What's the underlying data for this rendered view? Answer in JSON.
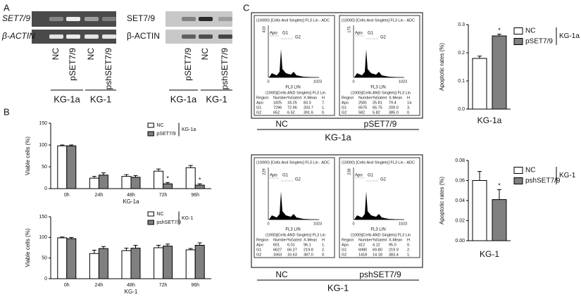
{
  "panel_labels": [
    "A",
    "B",
    "C"
  ],
  "western": [
    {
      "rows": [
        "SET7/9",
        "β-ACTIN"
      ],
      "lanes": [
        "NC",
        "pSET7/9",
        "NC",
        "pshSET7/9"
      ],
      "groups": [
        "KG-1a",
        "KG-1"
      ]
    },
    {
      "rows": [
        "SET7/9",
        "β-ACTIN"
      ],
      "lanes": [
        "pSET7/9",
        "NC",
        "pshSET7/9"
      ],
      "groups": [
        "KG-1a",
        "KG-1"
      ]
    }
  ],
  "flow": [
    {
      "labels": [
        "NC",
        "pSET7/9"
      ],
      "cell_line": "KG-1a",
      "samples": [
        {
          "header": "(10000) [Cells And Singlets] FL3 Lin - ADC",
          "y_max": "410",
          "gates": [
            "Apo",
            "G1",
            "G2"
          ],
          "x_ticks": [
            "0",
            "1023"
          ],
          "x_label": "FL3 LIN",
          "table_title": "(1000)[Cells AND Singlets] FL3 Lin",
          "columns": [
            "Region",
            "Number",
            "%Gated",
            "X-Mean",
            "H"
          ],
          "rows": [
            [
              "Apo",
              "1825",
              "18.25",
              "83.3",
              "7."
            ],
            [
              "G1",
              "7296",
              "72.96",
              "203.7",
              "1."
            ],
            [
              "G2",
              "652",
              "6.52",
              "391.6",
              "0."
            ]
          ]
        },
        {
          "header": "(10000) [Cells And Singlets] FL3 Lin - ADC",
          "y_max": "175",
          "gates": [
            "Apo",
            "G1",
            "G2"
          ],
          "x_ticks": [
            "0",
            "1023"
          ],
          "x_label": "FL3 LIN",
          "table_title": "(1000)[Cells AND Singlets] FL3 Lin",
          "columns": [
            "Region",
            "Number",
            "%Gated",
            "X-Mean",
            "H"
          ],
          "rows": [
            [
              "Apo",
              "2581",
              "25.81",
              "79.4",
              "14."
            ],
            [
              "G1",
              "6575",
              "65.75",
              "209.0",
              "3."
            ],
            [
              "G2",
              "582",
              "5.82",
              "385.0",
              "0."
            ]
          ]
        }
      ]
    },
    {
      "labels": [
        "NC",
        "pshSET7/9"
      ],
      "cell_line": "KG-1",
      "samples": [
        {
          "header": "(10000) [Cells And Singlets] FL3 Lin - ADC",
          "y_max": "229",
          "gates": [
            "Apo",
            "G1",
            "G2"
          ],
          "x_ticks": [
            "0",
            "1023"
          ],
          "x_label": "FL3 LIN",
          "table_title": "(1000)[Cells AND Singlets] FL3 Lin",
          "columns": [
            "Region",
            "Number",
            "%Gated",
            "X-Mean",
            "H"
          ],
          "rows": [
            [
              "Apo",
              "601",
              "6.01",
              "96.1",
              "1."
            ],
            [
              "G1",
              "6627",
              "66.27",
              "219.8",
              "2."
            ],
            [
              "G2",
              "1663",
              "16.63",
              "387.0",
              "0."
            ]
          ]
        },
        {
          "header": "(10000) [Cells And Singlets] FL3 Lin - ADC",
          "y_max": "238",
          "gates": [
            "Apo",
            "G1",
            "G2"
          ],
          "x_ticks": [
            "0",
            "1023"
          ],
          "x_label": "FL3 LIN",
          "table_title": "(1000)[Cells AND Singlets] FL3 Lin",
          "columns": [
            "Region",
            "Number",
            "%Gated",
            "X-Mean",
            "H"
          ],
          "rows": [
            [
              "Apo",
              "412",
              "4.12",
              "95.0",
              "0."
            ],
            [
              "G1",
              "6980",
              "69.80",
              "219.9",
              "2."
            ],
            [
              "G2",
              "1418",
              "14.18",
              "383.4",
              "1."
            ]
          ]
        }
      ]
    }
  ],
  "chart_data": [
    {
      "type": "bar",
      "y_label": "Viable cells (%)",
      "x_label": "KG-1a",
      "legend_title": "KG-1a",
      "categories": [
        "0h",
        "24h",
        "48h",
        "72h",
        "96h"
      ],
      "ylim": [
        0,
        150
      ],
      "yticks": [
        0,
        50,
        100,
        150
      ],
      "series": [
        {
          "name": "NC",
          "color": "#ffffff",
          "values": [
            98,
            24,
            28,
            40,
            48
          ],
          "errors": [
            2,
            4,
            4,
            5,
            5
          ],
          "annotations": [
            null,
            null,
            null,
            null,
            null
          ]
        },
        {
          "name": "pSET7/9",
          "color": "#808080",
          "values": [
            98,
            31,
            26,
            11,
            8
          ],
          "errors": [
            2,
            5,
            4,
            3,
            3
          ],
          "annotations": [
            null,
            null,
            null,
            "*",
            "*"
          ]
        }
      ]
    },
    {
      "type": "bar",
      "y_label": "Viable cells (%)",
      "x_label": "KG-1",
      "legend_title": "KG-1",
      "categories": [
        "0h",
        "24h",
        "48h",
        "72h",
        "96h"
      ],
      "ylim": [
        0,
        150
      ],
      "yticks": [
        0,
        50,
        100,
        150
      ],
      "series": [
        {
          "name": "NC",
          "color": "#ffffff",
          "values": [
            99,
            61,
            68,
            75,
            70
          ],
          "errors": [
            2,
            8,
            6,
            6,
            3
          ],
          "annotations": [
            null,
            null,
            null,
            null,
            null
          ]
        },
        {
          "name": "pshSET7/9",
          "color": "#808080",
          "values": [
            97,
            73,
            74,
            79,
            81
          ],
          "errors": [
            3,
            5,
            7,
            5,
            6
          ],
          "annotations": [
            null,
            null,
            null,
            null,
            null
          ]
        }
      ]
    },
    {
      "type": "bar",
      "y_label": "Apoptotic rates (%)",
      "x_label": "KG-1a",
      "legend_title": "KG-1a",
      "categories": [
        null
      ],
      "ylim": [
        0,
        0.3
      ],
      "yticks": [
        {
          "value": 0,
          "label": "0.0"
        },
        0.1,
        0.2,
        0.3
      ],
      "series": [
        {
          "name": "NC",
          "color": "#ffffff",
          "values": [
            0.18
          ],
          "errors": [
            0.008
          ],
          "annotations": [
            null
          ]
        },
        {
          "name": "pSET7/9",
          "color": "#808080",
          "values": [
            0.26
          ],
          "errors": [
            0.006
          ],
          "annotations": [
            "*"
          ]
        }
      ]
    },
    {
      "type": "bar",
      "y_label": "Apoptotic rates (%)",
      "x_label": "KG-1",
      "legend_title": "KG-1",
      "categories": [
        null
      ],
      "ylim": [
        0,
        0.08
      ],
      "yticks": [
        {
          "value": 0,
          "label": "0.00"
        },
        {
          "value": 0.02,
          "label": "0.02"
        },
        {
          "value": 0.04,
          "label": "0.04"
        },
        {
          "value": 0.06,
          "label": "0.06"
        },
        {
          "value": 0.08,
          "label": "0.08"
        }
      ],
      "series": [
        {
          "name": "NC",
          "color": "#ffffff",
          "values": [
            0.06
          ],
          "errors": [
            0.009
          ],
          "annotations": [
            null
          ]
        },
        {
          "name": "pshSET7/9",
          "color": "#808080",
          "values": [
            0.041
          ],
          "errors": [
            0.01
          ],
          "annotations": [
            "*"
          ]
        }
      ]
    }
  ]
}
